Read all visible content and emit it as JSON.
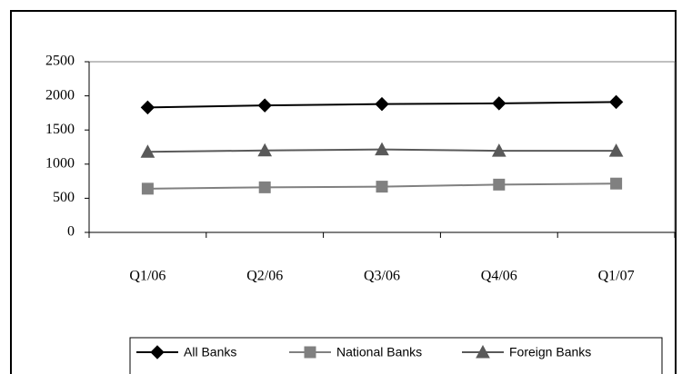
{
  "chart_data": {
    "type": "line",
    "categories": [
      "Q1/06",
      "Q2/06",
      "Q3/06",
      "Q4/06",
      "Q1/07"
    ],
    "series": [
      {
        "name": "All Banks",
        "color": "#000000",
        "marker": "diamond",
        "values": [
          1830,
          1860,
          1880,
          1890,
          1910
        ]
      },
      {
        "name": "National Banks",
        "color": "#808080",
        "marker": "square",
        "values": [
          640,
          660,
          670,
          700,
          715
        ]
      },
      {
        "name": "Foreign Banks",
        "color": "#595959",
        "marker": "triangle",
        "values": [
          1180,
          1200,
          1215,
          1195,
          1195
        ]
      }
    ],
    "ylim": [
      0,
      2500
    ],
    "yticks": [
      0,
      500,
      1000,
      1500,
      2000,
      2500
    ],
    "grid": false,
    "legend": "bottom"
  }
}
